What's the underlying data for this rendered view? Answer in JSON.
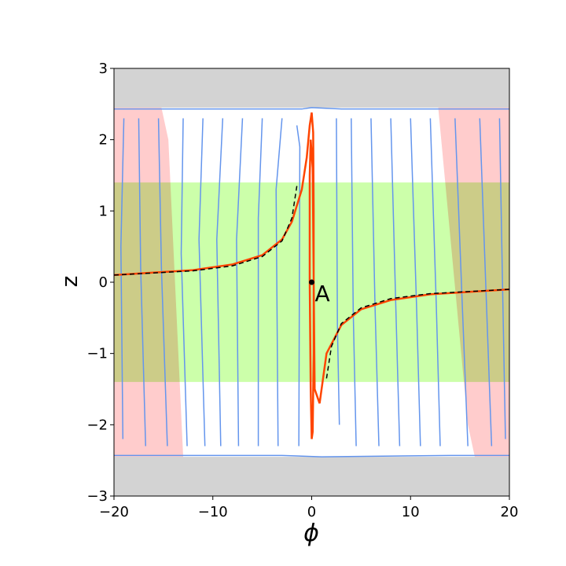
{
  "chart_data": {
    "type": "streamplot",
    "xlabel": "ϕ",
    "ylabel": "z",
    "xlim": [
      -20,
      20
    ],
    "ylim": [
      -3,
      3
    ],
    "xticks": [
      {
        "value": -20,
        "label": "−20"
      },
      {
        "value": -10,
        "label": "−10"
      },
      0,
      10,
      20
    ],
    "yticks": [
      {
        "value": -3,
        "label": "−3"
      },
      {
        "value": -2,
        "label": "−2"
      },
      {
        "value": -1,
        "label": "−1"
      },
      0,
      1,
      2,
      3
    ],
    "regions": [
      {
        "color": "#d3d3d3",
        "x": [
          -20,
          20,
          20,
          -20
        ],
        "y": [
          2.45,
          2.45,
          3,
          3
        ]
      },
      {
        "color": "#d3d3d3",
        "x": [
          -20,
          20,
          20,
          -20
        ],
        "y": [
          -3,
          -3,
          -2.45,
          -2.45
        ]
      },
      {
        "color": "#ccffaa",
        "x": [
          -20,
          20,
          20,
          -20
        ],
        "y": [
          -1.4,
          -1.4,
          1.4,
          1.4
        ]
      },
      {
        "color": "#ffcccc",
        "x": [
          -20,
          -15.2,
          -14.5,
          -13,
          -20
        ],
        "y": [
          2.45,
          2.45,
          2.0,
          -2.45,
          -2.45
        ]
      },
      {
        "color": "#ffcccc",
        "x": [
          12.8,
          20,
          20,
          16.5,
          15.8
        ],
        "y": [
          2.45,
          2.45,
          -2.45,
          -2.45,
          -2.0
        ]
      }
    ],
    "streamlines": [
      {
        "color": "#6495ed",
        "x": [
          -20,
          -1,
          0,
          3,
          20
        ],
        "y": [
          2.43,
          2.43,
          2.45,
          2.43,
          2.43
        ]
      },
      {
        "color": "#6495ed",
        "x": [
          -20,
          -3,
          1,
          14,
          20
        ],
        "y": [
          -2.43,
          -2.43,
          -2.45,
          -2.43,
          -2.43
        ]
      },
      {
        "color": "#6495ed",
        "x": [
          -19,
          -19.3,
          -19.1
        ],
        "y": [
          2.3,
          0.5,
          -2.2
        ]
      },
      {
        "color": "#6495ed",
        "x": [
          -17.5,
          -17.3,
          -16.8
        ],
        "y": [
          2.3,
          0.2,
          -2.3
        ]
      },
      {
        "color": "#6495ed",
        "x": [
          -15.5,
          -15.2,
          -14.6
        ],
        "y": [
          2.3,
          0.2,
          -2.3
        ]
      },
      {
        "color": "#6495ed",
        "x": [
          -13,
          -13.2,
          -12.6
        ],
        "y": [
          2.3,
          0.4,
          -2.3
        ]
      },
      {
        "color": "#6495ed",
        "x": [
          -11,
          -11.4,
          -10.8
        ],
        "y": [
          2.3,
          0.6,
          -2.3
        ]
      },
      {
        "color": "#6495ed",
        "x": [
          -9,
          -9.6,
          -9.2
        ],
        "y": [
          2.3,
          0.6,
          -2.3
        ]
      },
      {
        "color": "#6495ed",
        "x": [
          -7,
          -7.6,
          -7.4
        ],
        "y": [
          2.3,
          0.6,
          -2.3
        ]
      },
      {
        "color": "#6495ed",
        "x": [
          -5,
          -5.4,
          -5.4
        ],
        "y": [
          2.3,
          0.9,
          -2.3
        ]
      },
      {
        "color": "#6495ed",
        "x": [
          -3,
          -3.6,
          -3.4
        ],
        "y": [
          2.3,
          1.3,
          -2.3
        ]
      },
      {
        "color": "#6495ed",
        "x": [
          -1.5,
          -1.2,
          -1.3
        ],
        "y": [
          2.2,
          1.9,
          -2.3
        ]
      },
      {
        "color": "#6495ed",
        "x": [
          2.5,
          2.6,
          2.8
        ],
        "y": [
          2.3,
          -0.6,
          -2.0
        ]
      },
      {
        "color": "#6495ed",
        "x": [
          4,
          4.2,
          4.5
        ],
        "y": [
          2.3,
          -0.4,
          -2.3
        ]
      },
      {
        "color": "#6495ed",
        "x": [
          6,
          6.4,
          6.8
        ],
        "y": [
          2.3,
          -0.3,
          -2.3
        ]
      },
      {
        "color": "#6495ed",
        "x": [
          8,
          8.5,
          8.9
        ],
        "y": [
          2.3,
          -0.3,
          -2.3
        ]
      },
      {
        "color": "#6495ed",
        "x": [
          10,
          10.6,
          11
        ],
        "y": [
          2.3,
          -0.3,
          -2.3
        ]
      },
      {
        "color": "#6495ed",
        "x": [
          12,
          12.6,
          13
        ],
        "y": [
          2.3,
          -0.3,
          -2.3
        ]
      },
      {
        "color": "#6495ed",
        "x": [
          14.5,
          15.2,
          15.8
        ],
        "y": [
          2.3,
          -0.2,
          -2.3
        ]
      },
      {
        "color": "#6495ed",
        "x": [
          17,
          17.6,
          18.2
        ],
        "y": [
          2.3,
          0,
          -2.3
        ]
      },
      {
        "color": "#6495ed",
        "x": [
          19,
          19.3,
          19.6
        ],
        "y": [
          2.3,
          0,
          -2.2
        ]
      }
    ],
    "series": [
      {
        "color": "#ff4500",
        "dashed": false,
        "x": [
          -20,
          -12,
          -8,
          -5,
          -3,
          -2,
          -1,
          -0.5,
          -0.2,
          0,
          0.15,
          0.2,
          0.2,
          0.1,
          0,
          -0.1,
          -0.2,
          -0.2,
          -0.1,
          0.1,
          0.3,
          0.8,
          1.5,
          3,
          5,
          8,
          12,
          20
        ],
        "y": [
          0.1,
          0.17,
          0.25,
          0.38,
          0.6,
          0.85,
          1.3,
          1.75,
          2.2,
          2.38,
          2.1,
          1.0,
          -1.0,
          -2.1,
          -2.2,
          -1.5,
          0,
          1.5,
          2.0,
          1.6,
          -1.5,
          -1.7,
          -1.0,
          -0.6,
          -0.38,
          -0.25,
          -0.17,
          -0.1
        ]
      },
      {
        "color": "#000000",
        "dashed": true,
        "x": [
          -20,
          -12,
          -8,
          -5,
          -3,
          -2,
          -1.5
        ],
        "y": [
          0.1,
          0.16,
          0.23,
          0.36,
          0.58,
          0.9,
          1.35
        ]
      },
      {
        "color": "#000000",
        "dashed": true,
        "x": [
          1.5,
          2,
          3,
          5,
          8,
          12,
          20
        ],
        "y": [
          -1.35,
          -0.9,
          -0.58,
          -0.36,
          -0.23,
          -0.16,
          -0.1
        ]
      }
    ],
    "points": {
      "color": "#000000",
      "x": [
        0
      ],
      "y": [
        0
      ],
      "labels": [
        "A"
      ]
    }
  }
}
